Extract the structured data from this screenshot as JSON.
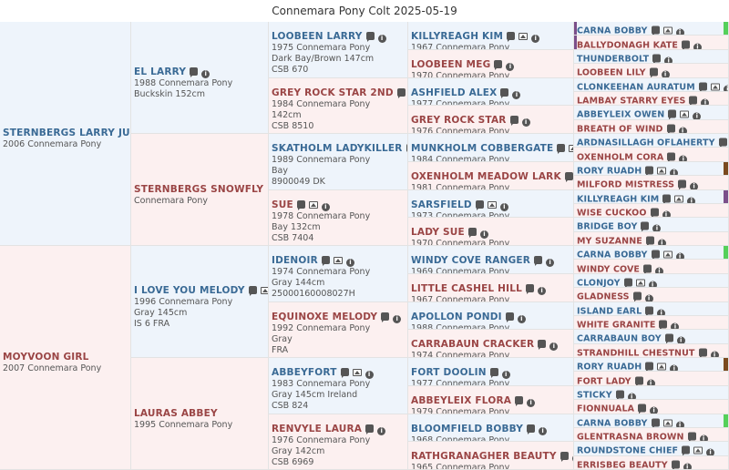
{
  "title": "Connemara Pony Colt 2025-05-19",
  "colors": {
    "purple": "#7b4f8a",
    "brown": "#7a4a1e",
    "green": "#55d05a"
  },
  "gen1": [
    {
      "sex": "m",
      "name": "STERNBERGS LARRY JUNIOR",
      "lines": [
        "2006 Connemara Pony"
      ],
      "icons": []
    },
    {
      "sex": "f",
      "name": "MOYVOON GIRL",
      "lines": [
        "2007 Connemara Pony"
      ],
      "icons": []
    }
  ],
  "gen2": [
    {
      "sex": "m",
      "name": "EL LARRY",
      "lines": [
        "1988 Connemara Pony",
        "Buckskin 152cm"
      ],
      "icons": [
        "chat",
        "info"
      ]
    },
    {
      "sex": "f",
      "name": "STERNBERGS SNOWFLY",
      "lines": [
        "Connemara Pony"
      ],
      "icons": []
    },
    {
      "sex": "m",
      "name": "I LOVE YOU MELODY",
      "lines": [
        "1996 Connemara Pony",
        "Gray 145cm",
        "IS 6 FRA"
      ],
      "icons": [
        "chat",
        "img",
        "info"
      ]
    },
    {
      "sex": "f",
      "name": "LAURAS ABBEY",
      "lines": [
        "1995 Connemara Pony"
      ],
      "icons": []
    }
  ],
  "gen3": [
    {
      "sex": "m",
      "name": "LOOBEEN LARRY",
      "lines": [
        "1975 Connemara Pony",
        "Dark Bay/Brown 147cm",
        "CSB 670"
      ],
      "icons": [
        "chat",
        "info"
      ]
    },
    {
      "sex": "f",
      "name": "GREY ROCK STAR 2ND",
      "lines": [
        "1984 Connemara Pony",
        "142cm",
        "CSB 8510"
      ],
      "icons": [
        "chat",
        "info"
      ]
    },
    {
      "sex": "m",
      "name": "SKATHOLM LADYKILLER",
      "lines": [
        "1989 Connemara Pony",
        "Bay",
        "8900049 DK"
      ],
      "icons": [
        "chat",
        "info"
      ]
    },
    {
      "sex": "f",
      "name": "SUE",
      "lines": [
        "1978 Connemara Pony",
        "Bay 132cm",
        "CSB 7404"
      ],
      "icons": [
        "chat",
        "img",
        "info"
      ]
    },
    {
      "sex": "m",
      "name": "IDENOIR",
      "lines": [
        "1974 Connemara Pony",
        "Gray 144cm",
        "25000160008027H"
      ],
      "icons": [
        "chat",
        "img",
        "info"
      ]
    },
    {
      "sex": "f",
      "name": "EQUINOXE MELODY",
      "lines": [
        "1992 Connemara Pony",
        "Gray",
        "FRA"
      ],
      "icons": [
        "chat",
        "info"
      ]
    },
    {
      "sex": "m",
      "name": "ABBEYFORT",
      "lines": [
        "1983 Connemara Pony",
        "Gray 145cm Ireland",
        "CSB 824"
      ],
      "icons": [
        "chat",
        "img",
        "info"
      ]
    },
    {
      "sex": "f",
      "name": "RENVYLE LAURA",
      "lines": [
        "1976 Connemara Pony",
        "Gray 142cm",
        "CSB 6969"
      ],
      "icons": [
        "chat",
        "info"
      ]
    }
  ],
  "gen4": [
    {
      "sex": "m",
      "name": "KILLYREAGH KIM",
      "lines": [
        "1967 Connemara Pony"
      ],
      "icons": [
        "chat",
        "img",
        "info"
      ]
    },
    {
      "sex": "f",
      "name": "LOOBEEN MEG",
      "lines": [
        "1970 Connemara Pony"
      ],
      "icons": [
        "chat",
        "info"
      ]
    },
    {
      "sex": "m",
      "name": "ASHFIELD ALEX",
      "lines": [
        "1977 Connemara Pony"
      ],
      "icons": [
        "chat",
        "info"
      ]
    },
    {
      "sex": "f",
      "name": "GREY ROCK STAR",
      "lines": [
        "1976 Connemara Pony"
      ],
      "icons": [
        "chat",
        "info"
      ]
    },
    {
      "sex": "m",
      "name": "MUNKHOLM COBBERGATE",
      "lines": [
        "1984 Connemara Pony"
      ],
      "icons": [
        "chat",
        "img",
        "info"
      ]
    },
    {
      "sex": "f",
      "name": "OXENHOLM MEADOW LARK",
      "lines": [
        "1981 Connemara Pony"
      ],
      "icons": [
        "chat",
        "info"
      ]
    },
    {
      "sex": "m",
      "name": "SARSFIELD",
      "lines": [
        "1973 Connemara Pony"
      ],
      "icons": [
        "chat",
        "img",
        "info"
      ]
    },
    {
      "sex": "f",
      "name": "LADY SUE",
      "lines": [
        "1970 Connemara Pony"
      ],
      "icons": [
        "chat",
        "info"
      ]
    },
    {
      "sex": "m",
      "name": "WINDY COVE RANGER",
      "lines": [
        "1969 Connemara Pony"
      ],
      "icons": [
        "chat",
        "info"
      ]
    },
    {
      "sex": "f",
      "name": "LITTLE CASHEL HILL",
      "lines": [
        "1967 Connemara Pony"
      ],
      "icons": [
        "chat",
        "info"
      ]
    },
    {
      "sex": "m",
      "name": "APOLLON PONDI",
      "lines": [
        "1988 Connemara Pony"
      ],
      "icons": [
        "chat",
        "info"
      ]
    },
    {
      "sex": "f",
      "name": "CARRABAUN CRACKER",
      "lines": [
        "1974 Connemara Pony"
      ],
      "icons": [
        "chat",
        "info"
      ]
    },
    {
      "sex": "m",
      "name": "FORT DOOLIN",
      "lines": [
        "1977 Connemara Pony"
      ],
      "icons": [
        "chat",
        "info"
      ]
    },
    {
      "sex": "f",
      "name": "ABBEYLEIX FLORA",
      "lines": [
        "1979 Connemara Pony"
      ],
      "icons": [
        "chat",
        "info"
      ]
    },
    {
      "sex": "m",
      "name": "BLOOMFIELD BOBBY",
      "lines": [
        "1968 Connemara Pony"
      ],
      "icons": [
        "chat",
        "info"
      ]
    },
    {
      "sex": "f",
      "name": "RATHGRANAGHER BEAUTY",
      "lines": [
        "1965 Connemara Pony"
      ],
      "icons": [
        "chat",
        "info"
      ]
    }
  ],
  "gen5": [
    {
      "sex": "m",
      "name": "CARNA BOBBY",
      "icons": [
        "chat",
        "img",
        "info"
      ],
      "bar": "green",
      "lbar": "purple"
    },
    {
      "sex": "f",
      "name": "BALLYDONAGH KATE",
      "icons": [
        "chat",
        "info"
      ],
      "lbar": "purple"
    },
    {
      "sex": "m",
      "name": "THUNDERBOLT",
      "icons": [
        "chat",
        "info"
      ]
    },
    {
      "sex": "f",
      "name": "LOOBEEN LILY",
      "icons": [
        "chat",
        "info"
      ]
    },
    {
      "sex": "m",
      "name": "CLONKEEHAN AURATUM",
      "icons": [
        "chat",
        "img",
        "info"
      ]
    },
    {
      "sex": "f",
      "name": "LAMBAY STARRY EYES",
      "icons": [
        "chat",
        "info"
      ]
    },
    {
      "sex": "m",
      "name": "ABBEYLEIX OWEN",
      "icons": [
        "chat",
        "img",
        "info"
      ]
    },
    {
      "sex": "f",
      "name": "BREATH OF WIND",
      "icons": [
        "chat",
        "info"
      ]
    },
    {
      "sex": "m",
      "name": "ARDNASILLAGH OFLAHERTY",
      "icons": [
        "chat",
        "img",
        "info"
      ]
    },
    {
      "sex": "f",
      "name": "OXENHOLM CORA",
      "icons": [
        "chat",
        "info"
      ]
    },
    {
      "sex": "m",
      "name": "RORY RUADH",
      "icons": [
        "chat",
        "img",
        "info"
      ],
      "bar": "brown"
    },
    {
      "sex": "f",
      "name": "MILFORD MISTRESS",
      "icons": [
        "chat",
        "info"
      ]
    },
    {
      "sex": "m",
      "name": "KILLYREAGH KIM",
      "icons": [
        "chat",
        "img",
        "info"
      ],
      "bar": "purple"
    },
    {
      "sex": "f",
      "name": "WISE CUCKOO",
      "icons": [
        "chat",
        "info"
      ]
    },
    {
      "sex": "m",
      "name": "BRIDGE BOY",
      "icons": [
        "chat",
        "info"
      ]
    },
    {
      "sex": "f",
      "name": "MY SUZANNE",
      "icons": [
        "chat",
        "info"
      ]
    },
    {
      "sex": "m",
      "name": "CARNA BOBBY",
      "icons": [
        "chat",
        "img",
        "info"
      ],
      "bar": "green"
    },
    {
      "sex": "f",
      "name": "WINDY COVE",
      "icons": [
        "chat",
        "info"
      ]
    },
    {
      "sex": "m",
      "name": "CLONJOY",
      "icons": [
        "chat",
        "img",
        "info"
      ]
    },
    {
      "sex": "f",
      "name": "GLADNESS",
      "icons": [
        "chat",
        "info"
      ]
    },
    {
      "sex": "m",
      "name": "ISLAND EARL",
      "icons": [
        "chat",
        "info"
      ]
    },
    {
      "sex": "f",
      "name": "WHITE GRANITE",
      "icons": [
        "chat",
        "info"
      ]
    },
    {
      "sex": "m",
      "name": "CARRABAUN BOY",
      "icons": [
        "chat",
        "info"
      ]
    },
    {
      "sex": "f",
      "name": "STRANDHILL CHESTNUT",
      "icons": [
        "chat",
        "info"
      ]
    },
    {
      "sex": "m",
      "name": "RORY RUADH",
      "icons": [
        "chat",
        "img",
        "info"
      ],
      "bar": "brown"
    },
    {
      "sex": "f",
      "name": "FORT LADY",
      "icons": [
        "chat",
        "info"
      ]
    },
    {
      "sex": "m",
      "name": "STICKY",
      "icons": [
        "chat",
        "info"
      ]
    },
    {
      "sex": "f",
      "name": "FIONNUALA",
      "icons": [
        "chat",
        "info"
      ]
    },
    {
      "sex": "m",
      "name": "CARNA BOBBY",
      "icons": [
        "chat",
        "img",
        "info"
      ],
      "bar": "green"
    },
    {
      "sex": "f",
      "name": "GLENTRASNA BROWN",
      "icons": [
        "chat",
        "info"
      ]
    },
    {
      "sex": "m",
      "name": "ROUNDSTONE CHIEF",
      "icons": [
        "chat",
        "img",
        "info"
      ]
    },
    {
      "sex": "f",
      "name": "ERRISBEG BEAUTY",
      "icons": [
        "chat",
        "info"
      ]
    }
  ]
}
